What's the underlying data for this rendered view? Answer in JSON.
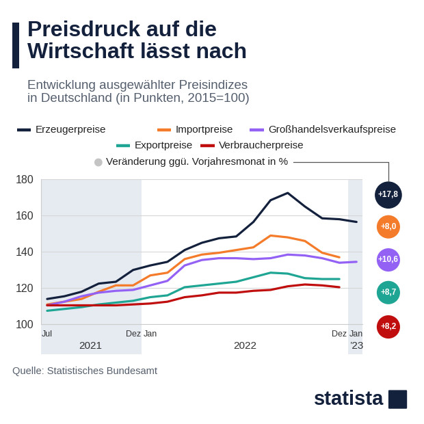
{
  "chart_data": {
    "type": "line",
    "title": "Preisdruck auf die\nWirtschaft lässt nach",
    "subtitle": "Entwicklung ausgewählter Preisindizes\nin Deutschland (in Punkten, 2015=100)",
    "source": "Quelle: Statistisches Bundesamt",
    "brand": "statista",
    "change_legend": "Veränderung ggü. Vorjahresmonat in %",
    "categories": [
      "Jul",
      null,
      null,
      null,
      null,
      "Dez",
      "Jan",
      null,
      null,
      null,
      null,
      null,
      null,
      null,
      null,
      null,
      null,
      "Dez",
      "Jan"
    ],
    "years": [
      "2021",
      "2021",
      "2021",
      "2021",
      "2021",
      "2021",
      "2022",
      "2022",
      "2022",
      "2022",
      "2022",
      "2022",
      "2022",
      "2022",
      "2022",
      "2022",
      "2022",
      "2022",
      "’23"
    ],
    "series": [
      {
        "name": "Erzeugerpreise",
        "color": "#14213d",
        "values": [
          114,
          115.5,
          118,
          122.5,
          123.5,
          130,
          132.5,
          134.5,
          141,
          145,
          147.5,
          148.5,
          156.5,
          168.5,
          172.5,
          165,
          158.5,
          158,
          156.5
        ],
        "change": 17.8,
        "change_label": "+17,8"
      },
      {
        "name": "Importpreise",
        "color": "#f47b2a",
        "values": [
          111,
          112.5,
          114,
          118,
          121.5,
          121.5,
          127,
          128.5,
          136,
          138.5,
          139.5,
          141,
          142.5,
          149,
          148,
          146,
          139.5,
          137,
          null
        ],
        "change": 8.0,
        "change_label": "+8,0"
      },
      {
        "name": "Großhandelsverkaufspreise",
        "color": "#9461f5",
        "values": [
          110.5,
          112.5,
          115.5,
          117.5,
          118.5,
          119,
          121.5,
          124,
          132.5,
          135.5,
          136.5,
          136.5,
          136,
          136.5,
          138.5,
          138,
          136.5,
          134,
          134.5
        ],
        "change": 10.6,
        "change_label": "+10,6"
      },
      {
        "name": "Exportpreise",
        "color": "#1fa593",
        "values": [
          107.5,
          108.5,
          109.5,
          111,
          112,
          113,
          115,
          116,
          120.5,
          121.5,
          122.5,
          123.5,
          126,
          128.5,
          128,
          125.5,
          125,
          125,
          null
        ],
        "change": 8.7,
        "change_label": "+8,7"
      },
      {
        "name": "Verbraucherpreise",
        "color": "#c00d0d",
        "values": [
          110.5,
          110.5,
          110.5,
          110.5,
          110.5,
          111,
          111.5,
          112.5,
          115,
          116,
          117.5,
          117.5,
          118.5,
          119,
          121,
          122,
          121.5,
          120.5,
          null
        ],
        "change": 8.2,
        "change_label": "+8,2"
      }
    ],
    "ylim": [
      100,
      180
    ],
    "yticks": [
      100,
      120,
      140,
      160,
      180
    ],
    "grid": true
  }
}
